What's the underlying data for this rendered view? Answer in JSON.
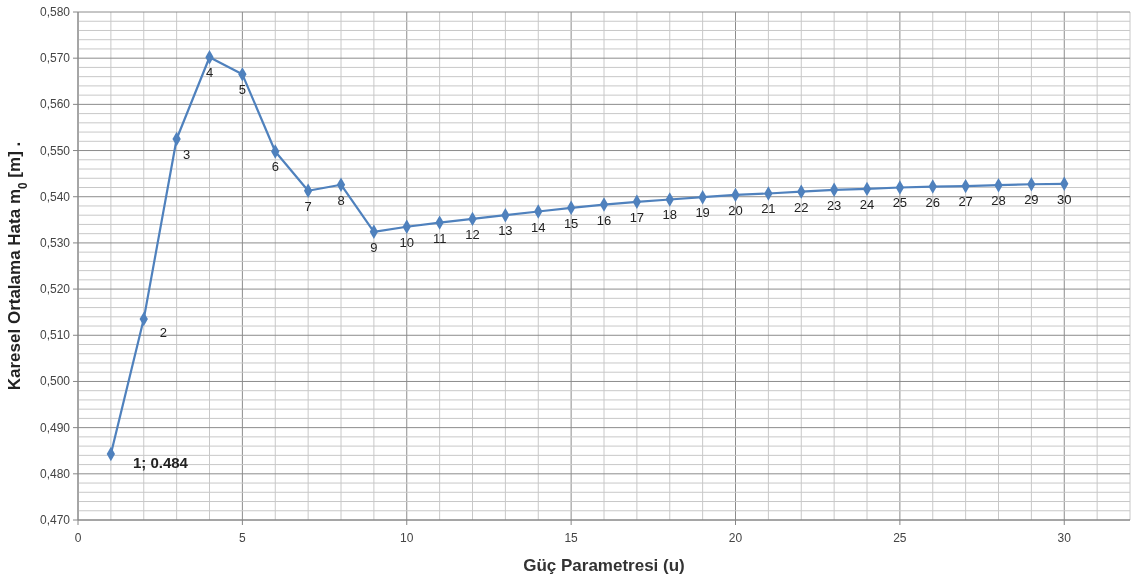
{
  "chart_data": {
    "type": "line",
    "xlabel": "Güç Parametresi (u)",
    "ylabel": "Karesel Ortalama Hata  m$_{0}$ [m] .",
    "x": [
      1,
      2,
      3,
      4,
      5,
      6,
      7,
      8,
      9,
      10,
      11,
      12,
      13,
      14,
      15,
      16,
      17,
      18,
      19,
      20,
      21,
      22,
      23,
      24,
      25,
      26,
      27,
      28,
      29,
      30
    ],
    "series": [
      {
        "color": "#4f81bd",
        "values": [
          0.4843,
          0.5135,
          0.5525,
          0.5702,
          0.5665,
          0.5498,
          0.5413,
          0.5426,
          0.5324,
          0.5335,
          0.5344,
          0.5352,
          0.536,
          0.5368,
          0.5376,
          0.5383,
          0.5389,
          0.5394,
          0.5399,
          0.5404,
          0.5407,
          0.5411,
          0.5415,
          0.5417,
          0.542,
          0.5422,
          0.5423,
          0.5425,
          0.5427,
          0.5428
        ]
      }
    ],
    "xlim": [
      0,
      32
    ],
    "xticks": [
      0,
      {
        "value": 1,
        "label": null
      },
      {
        "value": 2,
        "label": null
      },
      {
        "value": 3,
        "label": null
      },
      {
        "value": 4,
        "label": null
      },
      5,
      {
        "value": 6,
        "label": null
      },
      {
        "value": 7,
        "label": null
      },
      {
        "value": 8,
        "label": null
      },
      {
        "value": 9,
        "label": null
      },
      10,
      {
        "value": 11,
        "label": null
      },
      {
        "value": 12,
        "label": null
      },
      {
        "value": 13,
        "label": null
      },
      {
        "value": 14,
        "label": null
      },
      15,
      {
        "value": 16,
        "label": null
      },
      {
        "value": 17,
        "label": null
      },
      {
        "value": 18,
        "label": null
      },
      {
        "value": 19,
        "label": null
      },
      20,
      {
        "value": 21,
        "label": null
      },
      {
        "value": 22,
        "label": null
      },
      {
        "value": 23,
        "label": null
      },
      {
        "value": 24,
        "label": null
      },
      25,
      {
        "value": 26,
        "label": null
      },
      {
        "value": 27,
        "label": null
      },
      {
        "value": 28,
        "label": null
      },
      {
        "value": 29,
        "label": null
      },
      30,
      {
        "value": 31,
        "label": null
      },
      {
        "value": 32,
        "label": null
      }
    ],
    "ylim": [
      0.47,
      0.58
    ],
    "yticks": [
      {
        "value": 0.47,
        "label": "0,470"
      },
      {
        "value": 0.472,
        "label": null
      },
      {
        "value": 0.474,
        "label": null
      },
      {
        "value": 0.476,
        "label": null
      },
      {
        "value": 0.478,
        "label": null
      },
      {
        "value": 0.48,
        "label": "0,480"
      },
      {
        "value": 0.482,
        "label": null
      },
      {
        "value": 0.484,
        "label": null
      },
      {
        "value": 0.486,
        "label": null
      },
      {
        "value": 0.488,
        "label": null
      },
      {
        "value": 0.49,
        "label": "0,490"
      },
      {
        "value": 0.492,
        "label": null
      },
      {
        "value": 0.494,
        "label": null
      },
      {
        "value": 0.496,
        "label": null
      },
      {
        "value": 0.498,
        "label": null
      },
      {
        "value": 0.5,
        "label": "0,500"
      },
      {
        "value": 0.502,
        "label": null
      },
      {
        "value": 0.504,
        "label": null
      },
      {
        "value": 0.506,
        "label": null
      },
      {
        "value": 0.508,
        "label": null
      },
      {
        "value": 0.51,
        "label": "0,510"
      },
      {
        "value": 0.512,
        "label": null
      },
      {
        "value": 0.514,
        "label": null
      },
      {
        "value": 0.516,
        "label": null
      },
      {
        "value": 0.518,
        "label": null
      },
      {
        "value": 0.52,
        "label": "0,520"
      },
      {
        "value": 0.522,
        "label": null
      },
      {
        "value": 0.524,
        "label": null
      },
      {
        "value": 0.526,
        "label": null
      },
      {
        "value": 0.528,
        "label": null
      },
      {
        "value": 0.53,
        "label": "0,530"
      },
      {
        "value": 0.532,
        "label": null
      },
      {
        "value": 0.534,
        "label": null
      },
      {
        "value": 0.536,
        "label": null
      },
      {
        "value": 0.538,
        "label": null
      },
      {
        "value": 0.54,
        "label": "0,540"
      },
      {
        "value": 0.542,
        "label": null
      },
      {
        "value": 0.544,
        "label": null
      },
      {
        "value": 0.546,
        "label": null
      },
      {
        "value": 0.548,
        "label": null
      },
      {
        "value": 0.55,
        "label": "0,550"
      },
      {
        "value": 0.552,
        "label": null
      },
      {
        "value": 0.554,
        "label": null
      },
      {
        "value": 0.556,
        "label": null
      },
      {
        "value": 0.558,
        "label": null
      },
      {
        "value": 0.56,
        "label": "0,560"
      },
      {
        "value": 0.562,
        "label": null
      },
      {
        "value": 0.564,
        "label": null
      },
      {
        "value": 0.566,
        "label": null
      },
      {
        "value": 0.568,
        "label": null
      },
      {
        "value": 0.57,
        "label": "0,570"
      },
      {
        "value": 0.572,
        "label": null
      },
      {
        "value": 0.574,
        "label": null
      },
      {
        "value": 0.576,
        "label": null
      },
      {
        "value": 0.578,
        "label": null
      },
      {
        "value": 0.58,
        "label": "0,580"
      }
    ],
    "grid": true,
    "marker": "diamond",
    "line_style": "solid",
    "annotations": [
      {
        "text": "1; 0.484",
        "x": 1,
        "y": 0.4843
      },
      {
        "text": "2",
        "x": 2,
        "y": 0.5135
      },
      {
        "text": "3",
        "x": 3,
        "y": 0.5525
      },
      {
        "text": "4",
        "x": 4,
        "y": 0.5702
      },
      {
        "text": "5",
        "x": 5,
        "y": 0.5665
      },
      {
        "text": "6",
        "x": 6,
        "y": 0.5498
      },
      {
        "text": "7",
        "x": 7,
        "y": 0.5413
      },
      {
        "text": "8",
        "x": 8,
        "y": 0.5426
      },
      {
        "text": "9",
        "x": 9,
        "y": 0.5324
      },
      {
        "text": "10",
        "x": 10,
        "y": 0.5335
      },
      {
        "text": "11",
        "x": 11,
        "y": 0.5344
      },
      {
        "text": "12",
        "x": 12,
        "y": 0.5352
      },
      {
        "text": "13",
        "x": 13,
        "y": 0.536
      },
      {
        "text": "14",
        "x": 14,
        "y": 0.5368
      },
      {
        "text": "15",
        "x": 15,
        "y": 0.5376
      },
      {
        "text": "16",
        "x": 16,
        "y": 0.5383
      },
      {
        "text": "17",
        "x": 17,
        "y": 0.5389
      },
      {
        "text": "18",
        "x": 18,
        "y": 0.5394
      },
      {
        "text": "19",
        "x": 19,
        "y": 0.5399
      },
      {
        "text": "20",
        "x": 20,
        "y": 0.5404
      },
      {
        "text": "21",
        "x": 21,
        "y": 0.5407
      },
      {
        "text": "22",
        "x": 22,
        "y": 0.5411
      },
      {
        "text": "23",
        "x": 23,
        "y": 0.5415
      },
      {
        "text": "24",
        "x": 24,
        "y": 0.5417
      },
      {
        "text": "25",
        "x": 25,
        "y": 0.542
      },
      {
        "text": "26",
        "x": 26,
        "y": 0.5422
      },
      {
        "text": "27",
        "x": 27,
        "y": 0.5423
      },
      {
        "text": "28",
        "x": 28,
        "y": 0.5425
      },
      {
        "text": "29",
        "x": 29,
        "y": 0.5427
      },
      {
        "text": "30",
        "x": 30,
        "y": 0.5428
      }
    ]
  }
}
